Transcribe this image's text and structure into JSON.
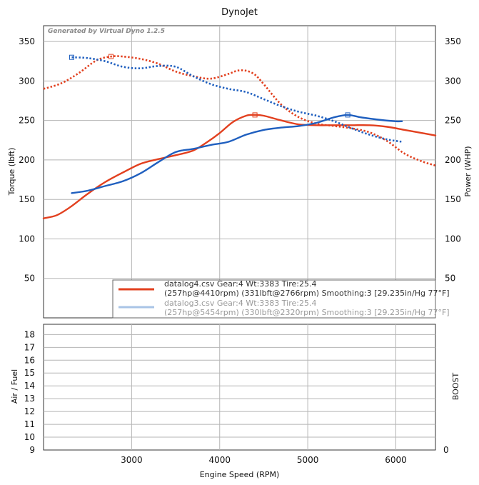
{
  "chart_data": {
    "type": "line",
    "title": "DynoJet",
    "generator_note": "Generated by Virtual Dyno 1.2.5",
    "xlabel": "Engine Speed (RPM)",
    "ylabel_left": "Torque (lbft)",
    "ylabel_right": "Power (WHP)",
    "xlim": [
      2000,
      6450
    ],
    "ylim": [
      0,
      370
    ],
    "x_ticks": [
      "3000",
      "4000",
      "5000",
      "6000"
    ],
    "y_ticks_left": [
      "50",
      "100",
      "150",
      "200",
      "250",
      "300",
      "350"
    ],
    "y_ticks_right": [
      "50",
      "100",
      "150",
      "200",
      "250",
      "300",
      "350"
    ],
    "series": [
      {
        "name": "datalog4 power (WHP)",
        "color": "#e2401f",
        "style": "solid",
        "x": [
          2000,
          2150,
          2300,
          2500,
          2700,
          2900,
          3100,
          3300,
          3500,
          3700,
          3850,
          4000,
          4150,
          4300,
          4400,
          4500,
          4700,
          4900,
          5100,
          5300,
          5500,
          5700,
          5900,
          6100,
          6300,
          6450
        ],
        "values": [
          126,
          130,
          140,
          157,
          172,
          184,
          195,
          201,
          206,
          212,
          222,
          234,
          248,
          256,
          257,
          256,
          250,
          245,
          244,
          244,
          244,
          244,
          242,
          238,
          234,
          231
        ]
      },
      {
        "name": "datalog4 torque (lbft)",
        "color": "#e2401f",
        "style": "dotted",
        "x": [
          2000,
          2200,
          2400,
          2600,
          2766,
          2900,
          3100,
          3300,
          3500,
          3700,
          3900,
          4100,
          4200,
          4300,
          4400,
          4500,
          4700,
          4900,
          5100,
          5300,
          5500,
          5700,
          5900,
          6100,
          6300,
          6450
        ],
        "values": [
          290,
          297,
          310,
          326,
          331,
          331,
          328,
          322,
          312,
          306,
          303,
          309,
          313,
          313,
          308,
          296,
          270,
          254,
          246,
          243,
          240,
          235,
          224,
          208,
          198,
          193
        ]
      },
      {
        "name": "datalog3 power (WHP)",
        "color": "#1f5fbf",
        "style": "solid",
        "x": [
          2320,
          2500,
          2700,
          2900,
          3100,
          3300,
          3500,
          3700,
          3900,
          4100,
          4300,
          4500,
          4700,
          4900,
          5100,
          5300,
          5454,
          5600,
          5800,
          6000,
          6070
        ],
        "values": [
          158,
          161,
          167,
          173,
          183,
          197,
          210,
          214,
          219,
          223,
          232,
          238,
          241,
          243,
          247,
          254,
          257,
          254,
          251,
          249,
          249
        ]
      },
      {
        "name": "datalog3 torque (lbft)",
        "color": "#1f5fbf",
        "style": "dotted",
        "x": [
          2320,
          2500,
          2700,
          2900,
          3100,
          3300,
          3500,
          3700,
          3900,
          4100,
          4300,
          4500,
          4700,
          4900,
          5100,
          5300,
          5500,
          5700,
          5900,
          6070
        ],
        "values": [
          330,
          329,
          325,
          318,
          316,
          319,
          318,
          306,
          296,
          290,
          286,
          277,
          268,
          261,
          256,
          249,
          240,
          232,
          226,
          223
        ]
      }
    ],
    "markers": [
      {
        "color": "#1f5fbf",
        "x": 2320,
        "y": 330
      },
      {
        "color": "#e2401f",
        "x": 2766,
        "y": 331
      },
      {
        "color": "#e2401f",
        "x": 4400,
        "y": 257
      },
      {
        "color": "#1f5fbf",
        "x": 5454,
        "y": 257
      }
    ],
    "legend": [
      {
        "line1": "datalog4.csv Gear:4 Wt:3383 Tire:25.4",
        "line2": "(257hp@4410rpm) (331lbft@2766rpm) Smoothing:3 [29.235in/Hg 77°F]",
        "swatch_color": "#e2401f",
        "text_color": "#333333"
      },
      {
        "line1": "datalog3.csv Gear:4 Wt:3383 Tire:25.4",
        "line2": "(257hp@5454rpm) (330lbft@2320rpm) Smoothing:3 [29.235in/Hg 77°F]",
        "swatch_color": "#a9c4e6",
        "text_color": "#9a9a9a"
      }
    ],
    "lower_panel": {
      "ylabel_left": "Air / Fuel",
      "ylabel_right": "BOOST",
      "y_ticks_left": [
        "9",
        "10",
        "11",
        "12",
        "13",
        "14",
        "15",
        "16",
        "17",
        "18"
      ],
      "y_ticks_right": [
        "0"
      ],
      "ylim": [
        9,
        18.8
      ],
      "series": []
    }
  }
}
